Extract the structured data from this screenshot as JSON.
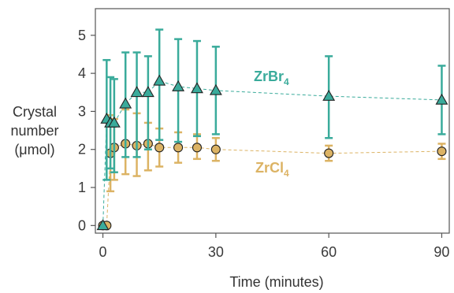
{
  "chart_data": {
    "type": "scatter",
    "xlabel": "Time (minutes)",
    "ylabel_lines": [
      "Crystal",
      "number",
      "(μmol)"
    ],
    "xlim": [
      -2,
      92
    ],
    "ylim": [
      -0.2,
      5.7
    ],
    "xticks": [
      0,
      30,
      60,
      90
    ],
    "yticks": [
      0,
      1,
      2,
      3,
      4,
      5
    ],
    "grid": false,
    "series": [
      {
        "name": "ZrBr",
        "subscript": "4",
        "color": "#3aab9b",
        "marker": "triangle",
        "x": [
          0,
          1,
          2,
          3,
          6,
          9,
          12,
          15,
          20,
          25,
          30,
          60,
          90
        ],
        "y": [
          0.0,
          2.8,
          2.7,
          2.7,
          3.2,
          3.5,
          3.5,
          3.8,
          3.65,
          3.6,
          3.55,
          3.4,
          3.3
        ],
        "err_low": [
          0.0,
          1.2,
          1.5,
          1.4,
          1.8,
          1.8,
          2.0,
          2.25,
          2.2,
          2.35,
          2.4,
          2.3,
          2.4
        ],
        "err_high": [
          0.0,
          4.35,
          3.9,
          3.85,
          4.55,
          4.55,
          4.45,
          5.15,
          4.9,
          4.85,
          4.7,
          4.45,
          4.2
        ]
      },
      {
        "name": "ZrCl",
        "subscript": "4",
        "color": "#dcb364",
        "marker": "circle",
        "x": [
          0,
          1,
          2,
          3,
          6,
          9,
          12,
          15,
          20,
          25,
          30,
          60,
          90
        ],
        "y": [
          0.0,
          0.0,
          1.9,
          2.05,
          2.15,
          2.1,
          2.15,
          2.05,
          2.05,
          2.05,
          2.0,
          1.9,
          1.95
        ],
        "err_low": [
          0.0,
          0.0,
          0.9,
          1.2,
          1.35,
          1.3,
          1.45,
          1.55,
          1.65,
          1.75,
          1.7,
          1.7,
          1.75
        ],
        "err_high": [
          0.0,
          0.0,
          2.9,
          2.8,
          3.05,
          2.95,
          2.7,
          2.55,
          2.45,
          2.4,
          2.3,
          2.1,
          2.15
        ]
      }
    ]
  }
}
